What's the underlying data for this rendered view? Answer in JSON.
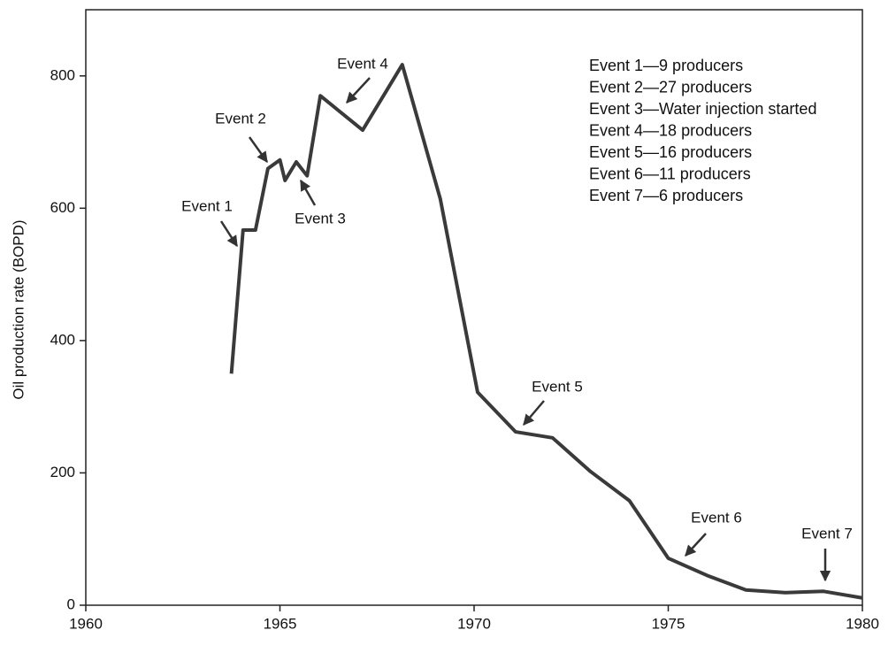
{
  "chart_data": {
    "type": "line",
    "y_label": "Oil production rate (BOPD)",
    "x": [
      1963.75,
      1964.05,
      1964.37,
      1964.69,
      1965.0,
      1965.13,
      1965.42,
      1965.7,
      1966.04,
      1967.13,
      1968.15,
      1969.13,
      1970.09,
      1971.07,
      1972.02,
      1973.0,
      1974.0,
      1975.0,
      1976.0,
      1977.0,
      1978.0,
      1979.0,
      1980.0
    ],
    "series": [
      {
        "name": "Oil production rate",
        "color": "#3a3a3a",
        "values": [
          350,
          567,
          567,
          660,
          673,
          642,
          670,
          649,
          770,
          718,
          817,
          614,
          322,
          262,
          253,
          202,
          158,
          71,
          45,
          23,
          19,
          21,
          11
        ]
      }
    ],
    "xlim": [
      1960,
      1980
    ],
    "xticks": [
      1960,
      1965,
      1970,
      1975,
      1980
    ],
    "ylim": [
      0,
      900
    ],
    "yticks": [
      0,
      200,
      400,
      600,
      800
    ],
    "grid": false,
    "annotations": [
      "Event 1",
      "Event 2",
      "Event 3",
      "Event 4",
      "Event 5",
      "Event 6",
      "Event 7"
    ],
    "notes": [
      "Event 1—9 producers",
      "Event 2—27 producers",
      "Event 3—Water injection started",
      "Event 4—18 producers",
      "Event 5—16 producers",
      "Event 6—11 producers",
      "Event 7—6 producers"
    ]
  }
}
